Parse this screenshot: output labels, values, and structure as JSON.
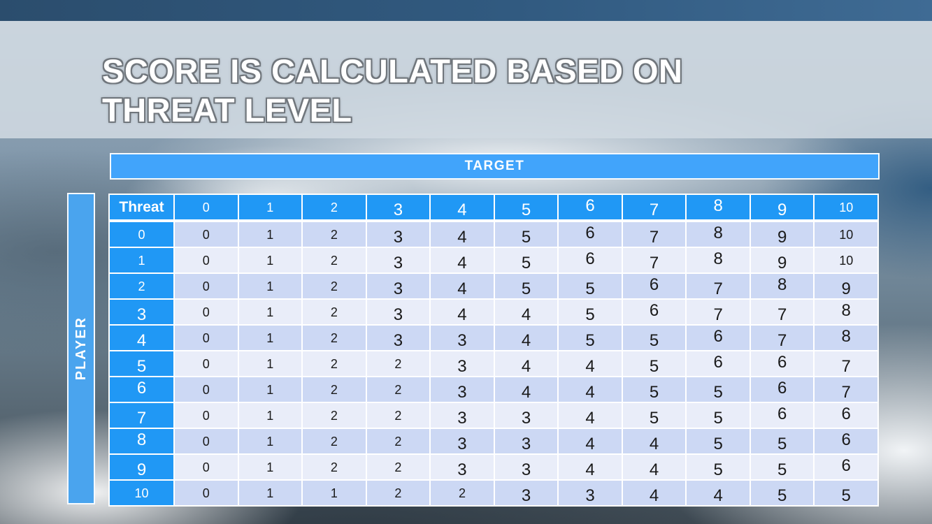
{
  "slide": {
    "title_line1": "SCORE IS CALCULATED BASED ON",
    "title_line2": "THREAT LEVEL"
  },
  "chart_data": {
    "type": "table",
    "title": "SCORE IS CALCULATED BASED ON THREAT LEVEL",
    "column_axis_label": "TARGET",
    "row_axis_label": "PLAYER",
    "corner_label": "Threat",
    "columns": [
      "0",
      "1",
      "2",
      "3",
      "4",
      "5",
      "6",
      "7",
      "8",
      "9",
      "10"
    ],
    "rows": [
      {
        "label": "0",
        "values": [
          0,
          1,
          2,
          3,
          4,
          5,
          6,
          7,
          8,
          9,
          10
        ]
      },
      {
        "label": "1",
        "values": [
          0,
          1,
          2,
          3,
          4,
          5,
          6,
          7,
          8,
          9,
          10
        ]
      },
      {
        "label": "2",
        "values": [
          0,
          1,
          2,
          3,
          4,
          5,
          5,
          6,
          7,
          8,
          9
        ]
      },
      {
        "label": "3",
        "values": [
          0,
          1,
          2,
          3,
          4,
          4,
          5,
          6,
          7,
          7,
          8
        ]
      },
      {
        "label": "4",
        "values": [
          0,
          1,
          2,
          3,
          3,
          4,
          5,
          5,
          6,
          7,
          8
        ]
      },
      {
        "label": "5",
        "values": [
          0,
          1,
          2,
          2,
          3,
          4,
          4,
          5,
          6,
          6,
          7
        ]
      },
      {
        "label": "6",
        "values": [
          0,
          1,
          2,
          2,
          3,
          4,
          4,
          5,
          5,
          6,
          7
        ]
      },
      {
        "label": "7",
        "values": [
          0,
          1,
          2,
          2,
          3,
          3,
          4,
          5,
          5,
          6,
          6
        ]
      },
      {
        "label": "8",
        "values": [
          0,
          1,
          2,
          2,
          3,
          3,
          4,
          4,
          5,
          5,
          6
        ]
      },
      {
        "label": "9",
        "values": [
          0,
          1,
          2,
          2,
          3,
          3,
          4,
          4,
          5,
          5,
          6
        ]
      },
      {
        "label": "10",
        "values": [
          0,
          1,
          1,
          2,
          2,
          3,
          3,
          4,
          4,
          5,
          5
        ]
      }
    ]
  },
  "colors": {
    "table_header_blue": "#2098f5",
    "target_bar_blue": "#41a4fb",
    "player_bar_blue": "#4aa4ee",
    "row_stripe_dark": "#ccd8f4",
    "row_stripe_light": "#e9edf9"
  }
}
